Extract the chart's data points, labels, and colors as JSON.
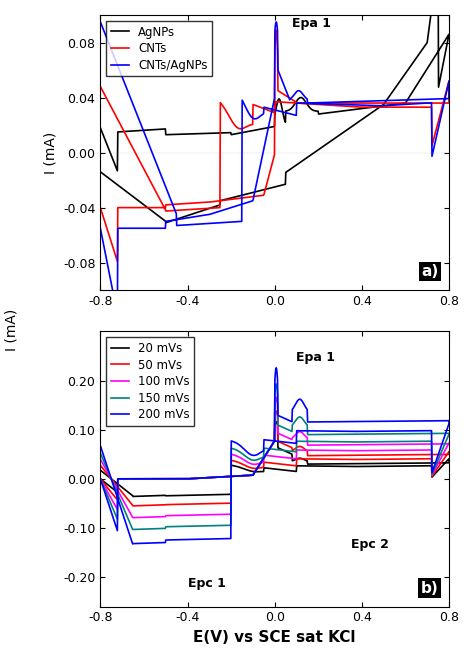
{
  "fig_width": 4.74,
  "fig_height": 6.6,
  "dpi": 100,
  "panel_a": {
    "xlabel": "",
    "ylabel": "I (mA)",
    "xlim": [
      -0.8,
      0.8
    ],
    "ylim": [
      -0.1,
      0.1
    ],
    "yticks": [
      -0.08,
      -0.04,
      0.0,
      0.04,
      0.08
    ],
    "xticks": [
      -0.8,
      -0.4,
      0.0,
      0.4,
      0.8
    ],
    "label": "a)",
    "epa_label": "Epa 1",
    "legend": [
      "AgNPs",
      "CNTs",
      "CNTs/AgNPs"
    ],
    "colors": [
      "#000000",
      "#ff0000",
      "#0000ff"
    ]
  },
  "panel_b": {
    "xlabel": "E(V) vs SCE sat KCl",
    "ylabel": "",
    "xlim": [
      -0.8,
      0.8
    ],
    "ylim": [
      -0.26,
      0.3
    ],
    "yticks": [
      -0.2,
      -0.1,
      0.0,
      0.1,
      0.2
    ],
    "xticks": [
      -0.8,
      -0.4,
      0.0,
      0.4,
      0.8
    ],
    "label": "b)",
    "epa_label": "Epa 1",
    "epc1_label": "Epc 1",
    "epc2_label": "Epc 2",
    "legend": [
      "20 mVs",
      "50 mVs",
      "100 mVs",
      "150 mVs",
      "200 mVs"
    ],
    "colors": [
      "#000000",
      "#ff0000",
      "#ff00ff",
      "#008080",
      "#0000ff"
    ]
  }
}
